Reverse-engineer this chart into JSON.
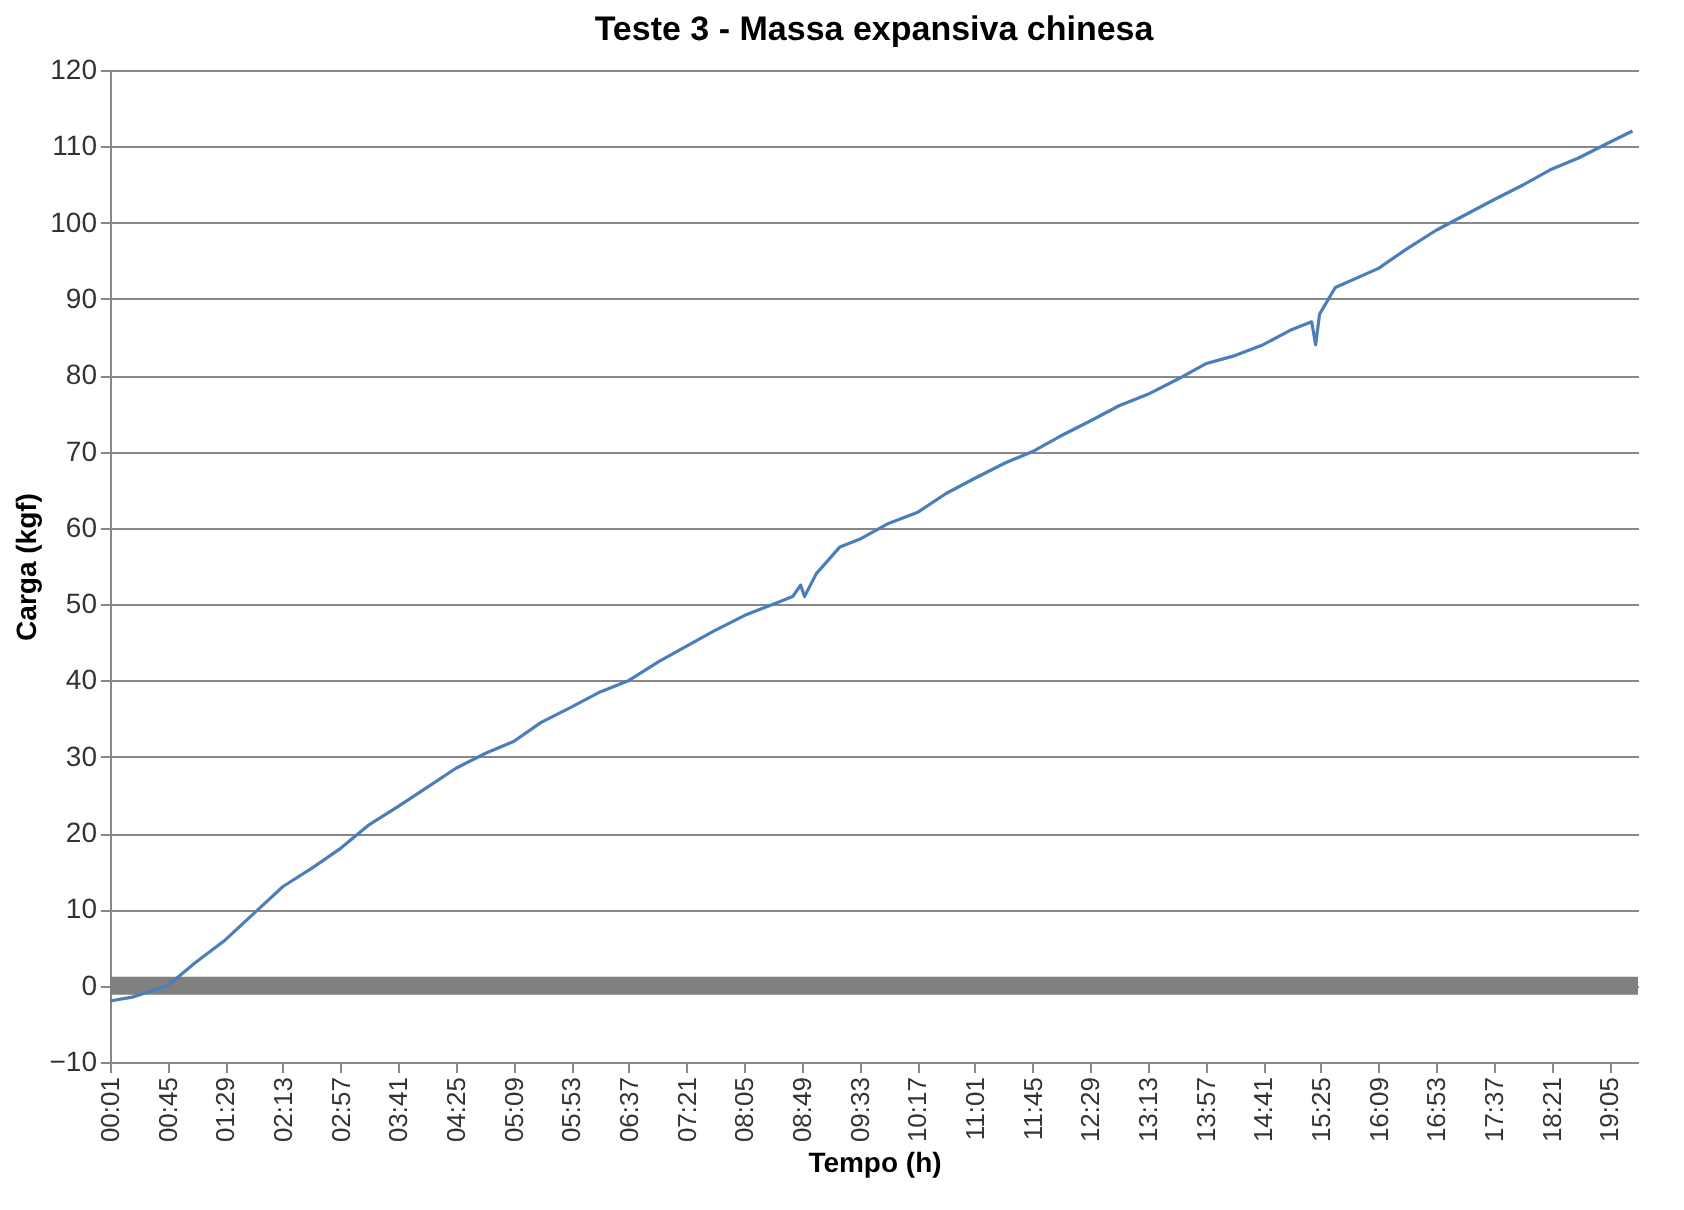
{
  "chart_data": {
    "type": "line",
    "title": "Teste 3 - Massa expansiva chinesa",
    "xlabel": "Tempo (h)",
    "ylabel": "Carga (kgf)",
    "x": [
      0.01667,
      0.3,
      0.75,
      1.1,
      1.4833,
      1.85,
      2.2167,
      2.6,
      2.95,
      3.3,
      3.6833,
      4.05,
      4.4167,
      4.8,
      5.15,
      5.5,
      5.8833,
      6.25,
      6.6167,
      7.0,
      7.35,
      7.7,
      8.0833,
      8.45,
      8.7,
      8.8,
      8.85,
      9.0,
      9.3,
      9.55,
      9.9,
      10.2833,
      10.65,
      11.0167,
      11.4,
      11.75,
      12.1,
      12.4833,
      12.85,
      13.2167,
      13.6,
      13.95,
      14.3,
      14.6833,
      15.05,
      15.3,
      15.35,
      15.4,
      15.6,
      16.15,
      16.5,
      16.8833,
      17.25,
      17.6167,
      18.0,
      18.35,
      18.7,
      19.0833,
      19.38
    ],
    "series": [
      {
        "color": "#4a7ebb",
        "values": [
          -2,
          -1.5,
          0,
          3,
          6,
          9.5,
          13,
          15.5,
          18,
          21,
          23.5,
          26,
          28.5,
          30.5,
          32,
          34.5,
          36.5,
          38.5,
          40,
          42.5,
          44.5,
          46.5,
          48.5,
          50,
          51,
          52.5,
          51,
          54,
          57.5,
          58.5,
          60.5,
          62,
          64.5,
          66.5,
          68.5,
          70,
          72,
          74,
          76,
          77.5,
          79.5,
          81.5,
          82.5,
          84,
          86,
          87,
          84,
          88,
          91.5,
          94,
          96.5,
          99,
          101,
          103,
          105,
          107,
          108.5,
          110.5,
          112
        ]
      }
    ],
    "xlim": [
      0.01667,
      19.45
    ],
    "ylim": [
      -10,
      120
    ],
    "yticks": [
      -10,
      0,
      10,
      20,
      30,
      40,
      50,
      60,
      70,
      80,
      90,
      100,
      110,
      120
    ],
    "xticks": [
      {
        "value": 0.01667,
        "label": "00:01"
      },
      {
        "value": 0.75,
        "label": "00:45"
      },
      {
        "value": 1.4833,
        "label": "01:29"
      },
      {
        "value": 2.2167,
        "label": "02:13"
      },
      {
        "value": 2.95,
        "label": "02:57"
      },
      {
        "value": 3.6833,
        "label": "03:41"
      },
      {
        "value": 4.4167,
        "label": "04:25"
      },
      {
        "value": 5.15,
        "label": "05:09"
      },
      {
        "value": 5.8833,
        "label": "05:53"
      },
      {
        "value": 6.6167,
        "label": "06:37"
      },
      {
        "value": 7.35,
        "label": "07:21"
      },
      {
        "value": 8.0833,
        "label": "08:05"
      },
      {
        "value": 8.8167,
        "label": "08:49"
      },
      {
        "value": 9.55,
        "label": "09:33"
      },
      {
        "value": 10.2833,
        "label": "10:17"
      },
      {
        "value": 11.0167,
        "label": "11:01"
      },
      {
        "value": 11.75,
        "label": "11:45"
      },
      {
        "value": 12.4833,
        "label": "12:29"
      },
      {
        "value": 13.2167,
        "label": "13:13"
      },
      {
        "value": 13.95,
        "label": "13:57"
      },
      {
        "value": 14.6833,
        "label": "14:41"
      },
      {
        "value": 15.4167,
        "label": "15:25"
      },
      {
        "value": 16.15,
        "label": "16:09"
      },
      {
        "value": 16.8833,
        "label": "16:53"
      },
      {
        "value": 17.6167,
        "label": "17:37"
      },
      {
        "value": 18.35,
        "label": "18:21"
      },
      {
        "value": 19.0833,
        "label": "19:05"
      }
    ],
    "grid": "y",
    "line_style": "solid",
    "marker": "none",
    "ref_lines": [
      {
        "axis": "y",
        "value": 0,
        "color": "#808080"
      }
    ]
  }
}
